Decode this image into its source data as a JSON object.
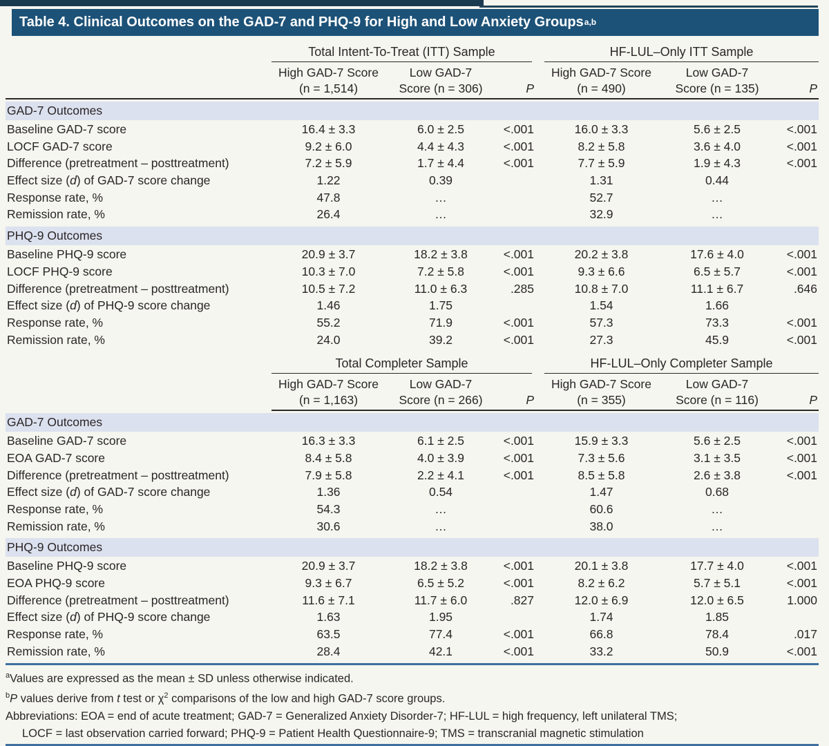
{
  "title": {
    "text": "Table 4. Clinical Outcomes on the GAD-7 and PHQ-9 for High and Low Anxiety Groups",
    "superscript": "a,b"
  },
  "colors": {
    "title_bar": "#1d5278",
    "section_band": "#dce1ef",
    "rule_blue": "#3f6f9f"
  },
  "blocks": [
    {
      "group_headers": [
        "Total Intent-To-Treat (ITT) Sample",
        "HF-LUL–Only ITT Sample"
      ],
      "p_label": "P",
      "columns": [
        {
          "line1": "High GAD-7 Score",
          "line2": "(n = 1,514)"
        },
        {
          "line1": "Low GAD-7",
          "line2": "Score (n = 306)"
        },
        {
          "line1": "High GAD-7 Score",
          "line2": "(n = 490)"
        },
        {
          "line1": "Low GAD-7",
          "line2": "Score (n = 135)"
        }
      ],
      "sections": [
        {
          "label": "GAD-7 Outcomes",
          "rows": [
            {
              "label_pre": "Baseline GAD-7 score",
              "label_italic": "",
              "label_post": "",
              "values": [
                "16.4 ± 3.3",
                "6.0 ± 2.5",
                "<.001",
                "16.0 ± 3.3",
                "5.6 ± 2.5",
                "<.001"
              ]
            },
            {
              "label_pre": "LOCF GAD-7 score",
              "label_italic": "",
              "label_post": "",
              "values": [
                "9.2 ± 6.0",
                "4.4 ± 4.3",
                "<.001",
                "8.2 ± 5.8",
                "3.6 ± 4.0",
                "<.001"
              ]
            },
            {
              "label_pre": "Difference (pretreatment – posttreatment)",
              "label_italic": "",
              "label_post": "",
              "values": [
                "7.2 ± 5.9",
                "1.7 ± 4.4",
                "<.001",
                "7.7 ± 5.9",
                "1.9 ± 4.3",
                "<.001"
              ]
            },
            {
              "label_pre": "Effect size (",
              "label_italic": "d",
              "label_post": ") of GAD-7 score change",
              "values": [
                "1.22",
                "0.39",
                "",
                "1.31",
                "0.44",
                ""
              ]
            },
            {
              "label_pre": "Response rate, %",
              "label_italic": "",
              "label_post": "",
              "values": [
                "47.8",
                "…",
                "",
                "52.7",
                "…",
                ""
              ]
            },
            {
              "label_pre": "Remission rate, %",
              "label_italic": "",
              "label_post": "",
              "values": [
                "26.4",
                "…",
                "",
                "32.9",
                "…",
                ""
              ]
            }
          ]
        },
        {
          "label": "PHQ-9 Outcomes",
          "rows": [
            {
              "label_pre": "Baseline PHQ-9 score",
              "label_italic": "",
              "label_post": "",
              "values": [
                "20.9 ± 3.7",
                "18.2 ± 3.8",
                "<.001",
                "20.2 ± 3.8",
                "17.6 ± 4.0",
                "<.001"
              ]
            },
            {
              "label_pre": "LOCF PHQ-9 score",
              "label_italic": "",
              "label_post": "",
              "values": [
                "10.3 ± 7.0",
                "7.2 ± 5.8",
                "<.001",
                "9.3 ± 6.6",
                "6.5 ± 5.7",
                "<.001"
              ]
            },
            {
              "label_pre": "Difference (pretreatment – posttreatment)",
              "label_italic": "",
              "label_post": "",
              "values": [
                "10.5 ± 7.2",
                "11.0 ± 6.3",
                ".285",
                "10.8 ± 7.0",
                "11.1 ± 6.7",
                ".646"
              ]
            },
            {
              "label_pre": "Effect size (",
              "label_italic": "d",
              "label_post": ") of PHQ-9 score change",
              "values": [
                "1.46",
                "1.75",
                "",
                "1.54",
                "1.66",
                ""
              ]
            },
            {
              "label_pre": "Response rate, %",
              "label_italic": "",
              "label_post": "",
              "values": [
                "55.2",
                "71.9",
                "<.001",
                "57.3",
                "73.3",
                "<.001"
              ]
            },
            {
              "label_pre": "Remission rate, %",
              "label_italic": "",
              "label_post": "",
              "values": [
                "24.0",
                "39.2",
                "<.001",
                "27.3",
                "45.9",
                "<.001"
              ]
            }
          ]
        }
      ]
    },
    {
      "group_headers": [
        "Total Completer Sample",
        "HF-LUL–Only Completer Sample"
      ],
      "p_label": "P",
      "columns": [
        {
          "line1": "High GAD-7 Score",
          "line2": "(n = 1,163)"
        },
        {
          "line1": "Low GAD-7",
          "line2": "Score (n = 266)"
        },
        {
          "line1": "High GAD-7 Score",
          "line2": "(n = 355)"
        },
        {
          "line1": "Low GAD-7",
          "line2": "Score (n = 116)"
        }
      ],
      "sections": [
        {
          "label": "GAD-7 Outcomes",
          "rows": [
            {
              "label_pre": "Baseline GAD-7 score",
              "label_italic": "",
              "label_post": "",
              "values": [
                "16.3 ± 3.3",
                "6.1 ± 2.5",
                "<.001",
                "15.9 ± 3.3",
                "5.6 ± 2.5",
                "<.001"
              ]
            },
            {
              "label_pre": "EOA GAD-7 score",
              "label_italic": "",
              "label_post": "",
              "values": [
                "8.4 ± 5.8",
                "4.0 ± 3.9",
                "<.001",
                "7.3 ± 5.6",
                "3.1 ± 3.5",
                "<.001"
              ]
            },
            {
              "label_pre": "Difference (pretreatment – posttreatment)",
              "label_italic": "",
              "label_post": "",
              "values": [
                "7.9 ± 5.8",
                "2.2 ± 4.1",
                "<.001",
                "8.5 ± 5.8",
                "2.6 ± 3.8",
                "<.001"
              ]
            },
            {
              "label_pre": "Effect size (",
              "label_italic": "d",
              "label_post": ") of GAD-7 score change",
              "values": [
                "1.36",
                "0.54",
                "",
                "1.47",
                "0.68",
                ""
              ]
            },
            {
              "label_pre": "Response rate, %",
              "label_italic": "",
              "label_post": "",
              "values": [
                "54.3",
                "…",
                "",
                "60.6",
                "…",
                ""
              ]
            },
            {
              "label_pre": "Remission rate, %",
              "label_italic": "",
              "label_post": "",
              "values": [
                "30.6",
                "…",
                "",
                "38.0",
                "…",
                ""
              ]
            }
          ]
        },
        {
          "label": "PHQ-9 Outcomes",
          "rows": [
            {
              "label_pre": "Baseline PHQ-9 score",
              "label_italic": "",
              "label_post": "",
              "values": [
                "20.9 ± 3.7",
                "18.2 ± 3.8",
                "<.001",
                "20.1 ± 3.8",
                "17.7 ± 4.0",
                "<.001"
              ]
            },
            {
              "label_pre": "EOA PHQ-9 score",
              "label_italic": "",
              "label_post": "",
              "values": [
                "9.3 ± 6.7",
                "6.5 ± 5.2",
                "<.001",
                "8.2 ± 6.2",
                "5.7 ± 5.1",
                "<.001"
              ]
            },
            {
              "label_pre": "Difference (pretreatment – posttreatment)",
              "label_italic": "",
              "label_post": "",
              "values": [
                "11.6 ± 7.1",
                "11.7 ± 6.0",
                ".827",
                "12.0 ± 6.9",
                "12.0 ± 6.5",
                "1.000"
              ]
            },
            {
              "label_pre": "Effect size (",
              "label_italic": "d",
              "label_post": ") of PHQ-9 score change",
              "values": [
                "1.63",
                "1.95",
                "",
                "1.74",
                "1.85",
                ""
              ]
            },
            {
              "label_pre": "Response rate, %",
              "label_italic": "",
              "label_post": "",
              "values": [
                "63.5",
                "77.4",
                "<.001",
                "66.8",
                "78.4",
                ".017"
              ]
            },
            {
              "label_pre": "Remission rate, %",
              "label_italic": "",
              "label_post": "",
              "values": [
                "28.4",
                "42.1",
                "<.001",
                "33.2",
                "50.9",
                "<.001"
              ]
            }
          ]
        }
      ]
    }
  ],
  "footnotes": {
    "a": {
      "marker": "a",
      "text": "Values are expressed as the mean ± SD unless otherwise indicated."
    },
    "b": {
      "marker": "b",
      "italic1": "P",
      "text1": " values derive from ",
      "italic2": "t",
      "text2": " test or χ",
      "sup": "2",
      "text3": " comparisons of the low and high GAD-7 score groups."
    },
    "abbr1": "Abbreviations: EOA = end of acute treatment; GAD-7 = Generalized Anxiety Disorder-7; HF-LUL = high frequency, left unilateral TMS;",
    "abbr2": "LOCF = last observation carried forward; PHQ-9 = Patient Health Questionnaire-9; TMS = transcranial magnetic stimulation"
  }
}
